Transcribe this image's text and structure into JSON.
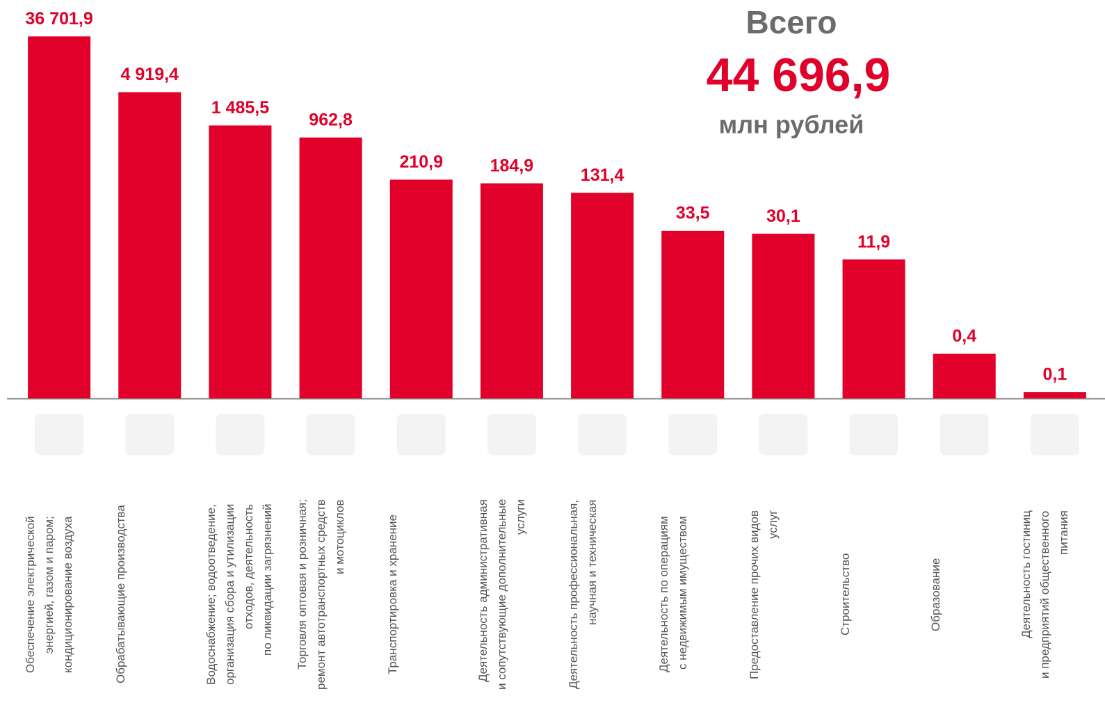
{
  "chart_data": {
    "type": "bar",
    "title": "Всего",
    "total": "44 696,9",
    "unit": "млн рублей",
    "categories": [
      "Обеспечение электрической\nэнергией, газом и паром;\nкондиционирование воздуха",
      "Обрабатывающие производства",
      "Водоснабжение; водоотведение,\nорганизация сбора и утилизации\nотходов, деятельность\nпо ликвидации загрязнений",
      "Торговля оптовая и розничная;\nремонт автотранспортных средств\nи мотоциклов",
      "Транспортировка и хранение",
      "Деятельность административная\nи сопутствующие дополнительные\nуслуги",
      "Деятельность профессиональная,\nнаучная и техническая",
      "Деятельность по операциям\nс недвижимым имуществом",
      "Предоставление прочих видов\nуслуг",
      "Строительство",
      "Образование",
      "Деятельность гостиниц\nи предприятий общественного\nпитания"
    ],
    "values": [
      36701.9,
      4919.4,
      1485.5,
      962.8,
      210.9,
      184.9,
      131.4,
      33.5,
      30.1,
      11.9,
      0.4,
      0.1
    ],
    "value_labels": [
      "36 701,9",
      "4 919,4",
      "1 485,5",
      "962,8",
      "210,9",
      "184,9",
      "131,4",
      "33,5",
      "30,1",
      "11,9",
      "0,4",
      "0,1"
    ],
    "color": "#e0002a",
    "log_scale": true,
    "ylim": [
      0.08,
      50000
    ]
  }
}
